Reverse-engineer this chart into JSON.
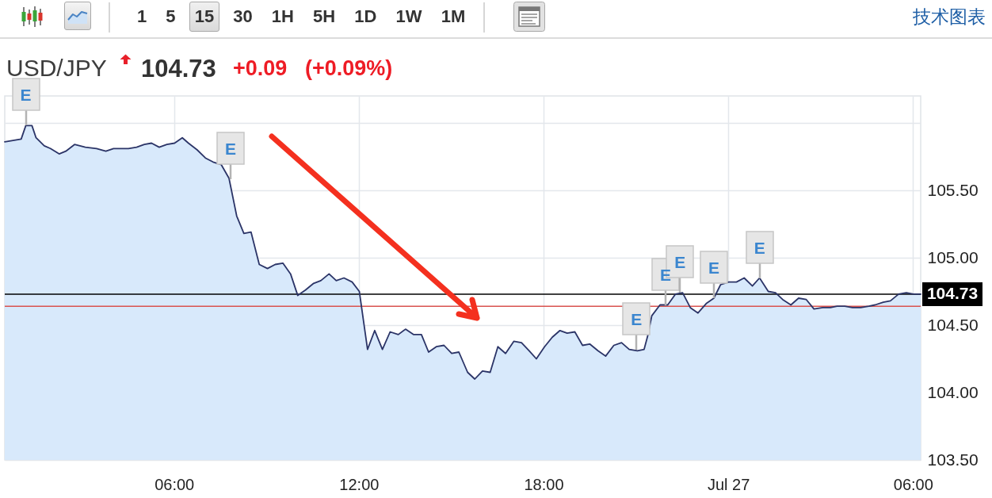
{
  "chart_data": {
    "type": "area",
    "title": "USD/JPY",
    "x": [
      "--07-26T00:30",
      "--07-26T01:02",
      "--07-26T01:11",
      "--07-26T01:23",
      "--07-26T01:31",
      "--07-26T01:47",
      "--07-26T01:59",
      "--07-26T02:16",
      "--07-26T02:29",
      "--07-26T02:46",
      "--07-26T03:07",
      "--07-26T03:29",
      "--07-26T03:47",
      "--07-26T04:02",
      "--07-26T04:31",
      "--07-26T04:47",
      "--07-26T05:02",
      "--07-26T05:16",
      "--07-26T05:31",
      "--07-26T05:46",
      "--07-26T06:01",
      "--07-26T06:16",
      "--07-26T06:28",
      "--07-26T06:45",
      "--07-26T07:01",
      "--07-26T07:16",
      "--07-26T07:32",
      "--07-26T07:47",
      "--07-26T08:02",
      "--07-26T08:16",
      "--07-26T08:30",
      "--07-26T08:46",
      "--07-26T09:02",
      "--07-26T09:17",
      "--07-26T09:32",
      "--07-26T09:47",
      "--07-26T10:01",
      "--07-26T10:16",
      "--07-26T10:32",
      "--07-26T10:46",
      "--07-26T11:02",
      "--07-26T11:16",
      "--07-26T11:31",
      "--07-26T11:47",
      "--07-26T12:01",
      "--07-26T12:17",
      "--07-26T12:31",
      "--07-26T12:46",
      "--07-26T13:01",
      "--07-26T13:17",
      "--07-26T13:31",
      "--07-26T13:47",
      "--07-26T14:02",
      "--07-26T14:16",
      "--07-26T14:31",
      "--07-26T14:46",
      "--07-26T15:01",
      "--07-26T15:15",
      "--07-26T15:32",
      "--07-26T15:46",
      "--07-26T16:01",
      "--07-26T16:16",
      "--07-26T16:31",
      "--07-26T16:46",
      "--07-26T17:02",
      "--07-26T17:17",
      "--07-26T17:32",
      "--07-26T17:46",
      "--07-26T18:02",
      "--07-26T18:17",
      "--07-26T18:32",
      "--07-26T18:46",
      "--07-26T19:01",
      "--07-26T19:16",
      "--07-26T19:30",
      "--07-26T19:46",
      "--07-26T20:01",
      "--07-26T20:17",
      "--07-26T20:32",
      "--07-26T20:47",
      "--07-26T21:03",
      "--07-26T21:16",
      "--07-26T21:23",
      "--07-26T21:31",
      "--07-26T21:47",
      "--07-26T22:02",
      "--07-26T22:17",
      "--07-26T22:31",
      "--07-26T22:46",
      "--07-26T23:01",
      "--07-26T23:17",
      "--07-26T23:32",
      "--07-26T23:45",
      "--07-27T00:01",
      "--07-27T00:16",
      "--07-27T00:31",
      "--07-27T00:47",
      "--07-27T01:01",
      "--07-27T01:18",
      "--07-27T01:32",
      "--07-27T01:46",
      "--07-27T02:02",
      "--07-27T02:17",
      "--07-27T02:32",
      "--07-27T02:47",
      "--07-27T03:04",
      "--07-27T03:19",
      "--07-27T03:32",
      "--07-27T03:47",
      "--07-27T04:02",
      "--07-27T04:18",
      "--07-27T04:34",
      "--07-27T04:46",
      "--07-27T05:02",
      "--07-27T05:16",
      "--07-27T05:32",
      "--07-27T05:47",
      "--07-27T06:01",
      "--07-27T06:15"
    ],
    "series": [
      {
        "color": "#2b3467",
        "values": [
          105.86,
          105.88,
          105.98,
          105.98,
          105.89,
          105.83,
          105.81,
          105.77,
          105.79,
          105.84,
          105.82,
          105.81,
          105.79,
          105.81,
          105.81,
          105.82,
          105.84,
          105.85,
          105.82,
          105.84,
          105.85,
          105.89,
          105.85,
          105.8,
          105.74,
          105.71,
          105.69,
          105.59,
          105.31,
          105.18,
          105.19,
          104.95,
          104.92,
          104.95,
          104.96,
          104.88,
          104.72,
          104.76,
          104.81,
          104.83,
          104.88,
          104.83,
          104.85,
          104.82,
          104.75,
          104.32,
          104.46,
          104.32,
          104.45,
          104.43,
          104.47,
          104.43,
          104.43,
          104.3,
          104.34,
          104.35,
          104.29,
          104.3,
          104.15,
          104.1,
          104.16,
          104.15,
          104.34,
          104.29,
          104.38,
          104.37,
          104.31,
          104.25,
          104.34,
          104.41,
          104.46,
          104.44,
          104.45,
          104.35,
          104.36,
          104.31,
          104.27,
          104.35,
          104.37,
          104.32,
          104.31,
          104.32,
          104.42,
          104.57,
          104.65,
          104.65,
          104.73,
          104.74,
          104.63,
          104.59,
          104.66,
          104.7,
          104.8,
          104.82,
          104.82,
          104.85,
          104.79,
          104.85,
          104.75,
          104.74,
          104.69,
          104.65,
          104.7,
          104.69,
          104.62,
          104.63,
          104.63,
          104.64,
          104.64,
          104.63,
          104.63,
          104.64,
          104.65,
          104.67,
          104.68,
          104.73,
          104.74,
          104.73,
          104.73
        ]
      }
    ],
    "xlim": [
      "--07-26T00:30",
      "--07-27T06:15"
    ],
    "xticks": [
      {
        "value": "--07-26T06:00",
        "label": "06:00"
      },
      {
        "value": "--07-26T12:00",
        "label": "12:00"
      },
      {
        "value": "--07-26T18:00",
        "label": "18:00"
      },
      {
        "value": "--07-27T00:00",
        "label": "Jul 27"
      },
      {
        "value": "--07-27T06:00",
        "label": "06:00"
      }
    ],
    "ylim": [
      103.5,
      106.2
    ],
    "yticks": [
      {
        "value": 103.5,
        "label": "103.50"
      },
      {
        "value": 104,
        "label": "104.00"
      },
      {
        "value": 104.5,
        "label": "104.50"
      },
      {
        "value": 105,
        "label": "105.00"
      },
      {
        "value": 105.5,
        "label": "105.50"
      },
      {
        "value": 106,
        "label": null
      }
    ],
    "grid": true,
    "ref_lines": [
      {
        "axis": "y",
        "value": 104.73,
        "label": "104.73",
        "color": "#000000"
      },
      {
        "axis": "y",
        "value": 104.64,
        "color": "#d9534f"
      }
    ],
    "annotations": [
      "104.73",
      "+0.09",
      "(+0.09%)",
      "1 5 15 30 1H 5H 1D 1W 1M",
      "技术图表",
      {
        "text": "E",
        "x": "--07-26T01:11",
        "y": 105.98
      },
      {
        "text": "E",
        "x": "--07-26T07:50",
        "y": 105.58
      },
      {
        "text": "E",
        "x": "--07-26T21:01",
        "y": 104.32
      },
      {
        "text": "E",
        "x": "--07-26T21:58",
        "y": 104.65
      },
      {
        "text": "E",
        "x": "--07-26T22:26",
        "y": 104.74
      },
      {
        "text": "E",
        "x": "--07-26T23:32",
        "y": 104.7
      },
      {
        "text": "E",
        "x": "--07-27T01:01",
        "y": 104.85
      }
    ]
  }
}
